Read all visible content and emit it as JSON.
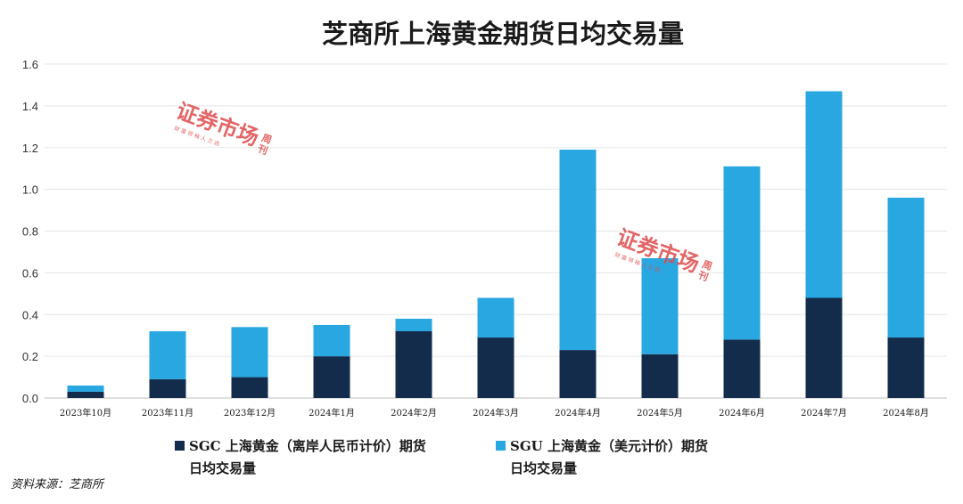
{
  "chart_data": {
    "type": "bar",
    "stacked": true,
    "title": "芝商所上海黄金期货日均交易量",
    "categories": [
      "2023年10月",
      "2023年11月",
      "2023年12月",
      "2024年1月",
      "2024年2月",
      "2024年3月",
      "2024年4月",
      "2024年5月",
      "2024年6月",
      "2024年7月",
      "2024年8月"
    ],
    "series": [
      {
        "name": "SGC 上海黄金（离岸人民币计价）期货日均交易量",
        "legend_lines": [
          "SGC 上海黄金（离岸人民币计价）期货",
          "日均交易量"
        ],
        "color": "#142c4c",
        "values": [
          0.03,
          0.09,
          0.1,
          0.2,
          0.32,
          0.29,
          0.23,
          0.21,
          0.28,
          0.48,
          0.29
        ]
      },
      {
        "name": "SGU 上海黄金（美元计价）期货日均交易量",
        "legend_lines": [
          "SGU 上海黄金（美元计价）期货",
          "日均交易量"
        ],
        "color": "#29a7e1",
        "values": [
          0.03,
          0.23,
          0.24,
          0.15,
          0.06,
          0.19,
          0.96,
          0.46,
          0.83,
          0.99,
          0.67
        ]
      }
    ],
    "ylim": [
      0,
      1.6
    ],
    "yticks": [
      "0.0",
      "0.2",
      "0.4",
      "0.6",
      "0.8",
      "1.0",
      "1.2",
      "1.4",
      "1.6"
    ],
    "grid": true,
    "legend_position": "bottom"
  },
  "source": "资料来源：芝商所",
  "watermark": {
    "main": "证券市场",
    "side": [
      "周",
      "刊"
    ],
    "sub": "财 富 领 袖 人 之 选"
  }
}
